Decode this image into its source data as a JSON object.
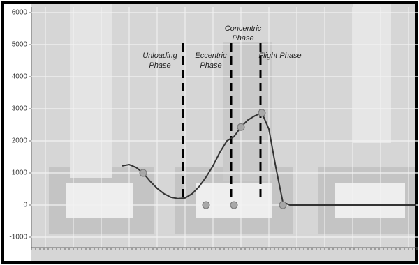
{
  "chart_data": {
    "type": "line",
    "categories": [
      null,
      null,
      null,
      null,
      null,
      null,
      null,
      null,
      null,
      null,
      null,
      null,
      null,
      null,
      null,
      null,
      null,
      null,
      null,
      null,
      null,
      null,
      null,
      null,
      null,
      null,
      null,
      null,
      null,
      null,
      null,
      null,
      null,
      null,
      null,
      null,
      null,
      null,
      null,
      null,
      null,
      null,
      null,
      null,
      null,
      null,
      null,
      null,
      null,
      null,
      null,
      null,
      null,
      null,
      null
    ],
    "series": [
      {
        "color": "#333333",
        "values": [
          null,
          null,
          null,
          null,
          null,
          null,
          null,
          null,
          null,
          null,
          null,
          null,
          1220,
          1260,
          1170,
          1000,
          740,
          520,
          350,
          240,
          200,
          220,
          350,
          570,
          870,
          1220,
          1650,
          2000,
          2130,
          2430,
          2650,
          2780,
          2870,
          2370,
          1170,
          90,
          0,
          0,
          0,
          0,
          0,
          0,
          0,
          0,
          0,
          0,
          0,
          0,
          0,
          0,
          0,
          0,
          0,
          0,
          0
        ]
      },
      {
        "color": "#a8a8a8",
        "markers": true,
        "values": [
          null,
          null,
          null,
          null,
          null,
          null,
          null,
          null,
          null,
          null,
          null,
          null,
          null,
          null,
          null,
          1000,
          null,
          null,
          null,
          null,
          null,
          null,
          null,
          null,
          0,
          null,
          null,
          null,
          0,
          2430,
          null,
          null,
          2870,
          null,
          null,
          0,
          null,
          null,
          null,
          null,
          null,
          null,
          null,
          null,
          null,
          null,
          null,
          null,
          null,
          null,
          null,
          null,
          null,
          null,
          null
        ]
      }
    ],
    "phase_dividers": [
      20.7,
      27.6,
      31.8
    ],
    "annotations": [
      {
        "text": "Unloading Phase",
        "x": 17.4,
        "y": 4500
      },
      {
        "text": "Eccentric Phase",
        "x": 24.7,
        "y": 4500
      },
      {
        "text": "Concentric Phase",
        "x": 29.3,
        "y": 5350
      },
      {
        "text": "Flight Phase",
        "x": 34.6,
        "y": 4500
      }
    ],
    "ylim": [
      -1000,
      6000
    ],
    "yticks": [
      -1000,
      0,
      1000,
      2000,
      3000,
      4000,
      5000,
      6000
    ],
    "grid": true
  }
}
